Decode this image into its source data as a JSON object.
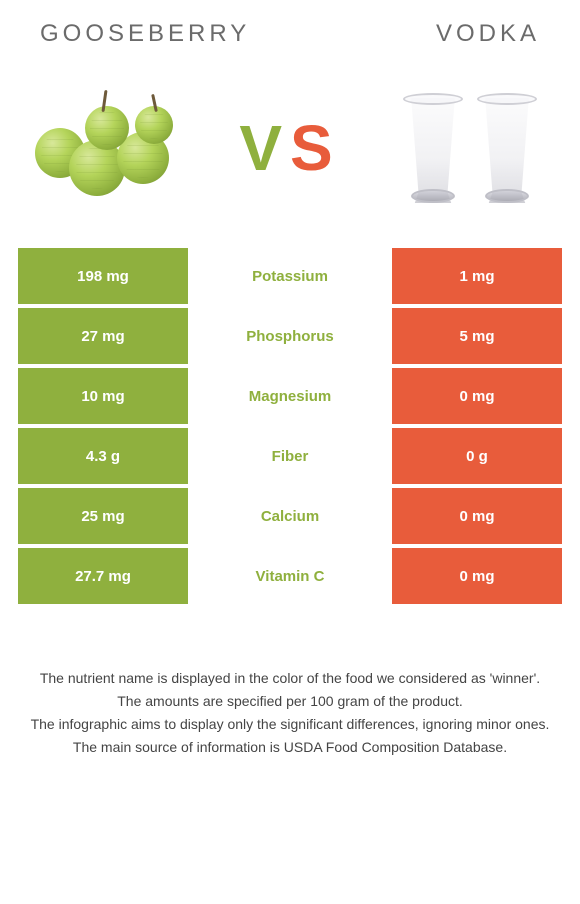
{
  "titles": {
    "left": "GOOSEBERRY",
    "right": "VODKA"
  },
  "vs": {
    "v": "V",
    "s": "S"
  },
  "colors": {
    "left": "#8fb03e",
    "right": "#e85c3b",
    "mid_bg": "#ffffff",
    "title_text": "#6b6b6b",
    "cell_text": "#ffffff"
  },
  "rows": [
    {
      "left": "198 mg",
      "label": "Potassium",
      "label_color": "#8fb03e",
      "right": "1 mg"
    },
    {
      "left": "27 mg",
      "label": "Phosphorus",
      "label_color": "#8fb03e",
      "right": "5 mg"
    },
    {
      "left": "10 mg",
      "label": "Magnesium",
      "label_color": "#8fb03e",
      "right": "0 mg"
    },
    {
      "left": "4.3 g",
      "label": "Fiber",
      "label_color": "#8fb03e",
      "right": "0 g"
    },
    {
      "left": "25 mg",
      "label": "Calcium",
      "label_color": "#8fb03e",
      "right": "0 mg"
    },
    {
      "left": "27.7 mg",
      "label": "Vitamin C",
      "label_color": "#8fb03e",
      "right": "0 mg"
    }
  ],
  "footnotes": [
    "The nutrient name is displayed in the color of the food we considered as 'winner'.",
    "The amounts are specified per 100 gram of the product.",
    "The infographic aims to display only the significant differences, ignoring minor ones.",
    "The main source of information is USDA Food Composition Database."
  ]
}
